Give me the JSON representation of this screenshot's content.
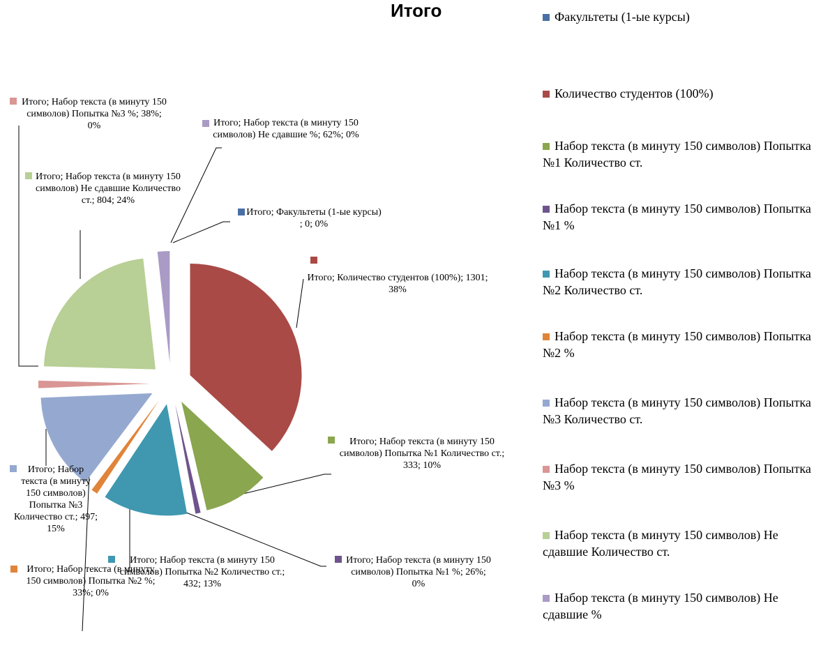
{
  "chart_data": {
    "type": "pie",
    "title": "Итого",
    "categories": [
      "Факультеты (1-ые курсы)",
      "Количество студентов (100%)",
      "Набор текста (в минуту 150 символов) Попытка №1 Количество ст.",
      "Набор текста (в минуту 150 символов) Попытка №1 %",
      "Набор текста (в минуту 150 символов) Попытка №2 Количество ст.",
      "Набор текста (в минуту 150 символов) Попытка №2 %",
      "Набор текста (в минуту 150 символов) Попытка №3 Количество ст.",
      "Набор текста (в минуту 150 символов) Попытка №3 %",
      "Набор текста (в минуту 150 символов) Не сдавшие Количество ст.",
      "Набор текста (в минуту 150 символов) Не сдавшие %"
    ],
    "values": [
      0,
      1301,
      333,
      26,
      432,
      33,
      497,
      38,
      804,
      62
    ],
    "value_labels": [
      "Итого; Факультеты (1-ые курсы) ; 0; 0%",
      "Итого; Количество студентов (100%); 1301; 38%",
      "Итого; Набор текста (в минуту 150 символов) Попытка №1 Количество ст.; 333; 10%",
      "Итого; Набор текста (в минуту 150 символов) Попытка №1 %; 26%; 0%",
      "Итого; Набор текста (в минуту 150 символов) Попытка №2 Количество ст.; 432; 13%",
      "Итого; Набор текста (в минуту 150 символов) Попытка №2 %; 33%; 0%",
      "Итого; Набор текста (в минуту 150 символов) Попытка №3 Количество ст.; 497; 15%",
      "Итого; Набор текста (в минуту 150 символов) Попытка №3 %; 38%; 0%",
      "Итого; Набор текста (в минуту 150 символов) Не сдавшие Количество ст.; 804; 24%",
      "Итого; Набор текста (в минуту 150 символов) Не сдавшие %; 62%; 0%"
    ],
    "colors": [
      "#4a6fa5",
      "#a94a46",
      "#8aa64e",
      "#6e548d",
      "#3f98b0",
      "#e0843a",
      "#95a9d0",
      "#d99694",
      "#b8cf95",
      "#a99bc6"
    ],
    "legend": "right"
  }
}
